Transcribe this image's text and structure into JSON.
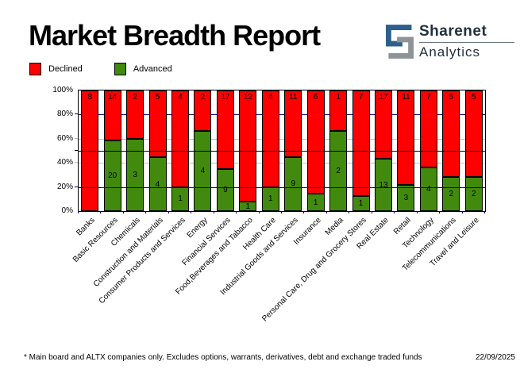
{
  "title": "Market Breadth Report",
  "logo": {
    "line1": "Sharenet",
    "line2": "Analytics",
    "blue": "#2e5f8c",
    "gray": "#8e9398"
  },
  "legend": [
    {
      "label": "Declined",
      "color": "#ff0000"
    },
    {
      "label": "Advanced",
      "color": "#428a0d"
    }
  ],
  "footnote": "* Main board and ALTX companies only. Excludes options, warrants, derivatives, debt and exchange traded funds",
  "date": "22/09/2025",
  "chart_data": {
    "type": "bar",
    "stacked": true,
    "normalized": "percent",
    "title": "Market Breadth Report",
    "categories": [
      "Banks",
      "Basic Resources",
      "Chemicals",
      "Construction and Materials",
      "Consumer Products and Services",
      "Energy",
      "Financial Services",
      "Food,Beverages and Tabacco",
      "Health Care",
      "Industrial Goods and Services",
      "Insurance",
      "Media",
      "Personal Care, Drug and Grocery Stores",
      "Real Estate",
      "Retail",
      "Technology",
      "Telecommunications",
      "Travel and Leisure"
    ],
    "series": [
      {
        "name": "Declined",
        "color": "#ff0000",
        "values": [
          8,
          14,
          2,
          5,
          4,
          2,
          17,
          12,
          4,
          11,
          6,
          1,
          7,
          17,
          11,
          7,
          5,
          5
        ]
      },
      {
        "name": "Advanced",
        "color": "#428a0d",
        "values": [
          0,
          20,
          3,
          4,
          1,
          4,
          9,
          1,
          1,
          9,
          1,
          2,
          1,
          13,
          3,
          4,
          2,
          2
        ]
      }
    ],
    "ylim": [
      0,
      100
    ],
    "y_ticks": [
      "100%",
      "80%",
      "60%",
      "40%",
      "20%",
      "0%"
    ],
    "legend_position": "top-left",
    "gridlines": [
      {
        "pct": 80,
        "color": "#000080",
        "over": false
      },
      {
        "pct": 60,
        "color": "#c0c0c0",
        "over": false
      },
      {
        "pct": 40,
        "color": "#c0c0c0",
        "over": false
      },
      {
        "pct": 50,
        "color": "#000000",
        "over": true
      },
      {
        "pct": 20,
        "color": "#000080",
        "over": true
      }
    ]
  }
}
